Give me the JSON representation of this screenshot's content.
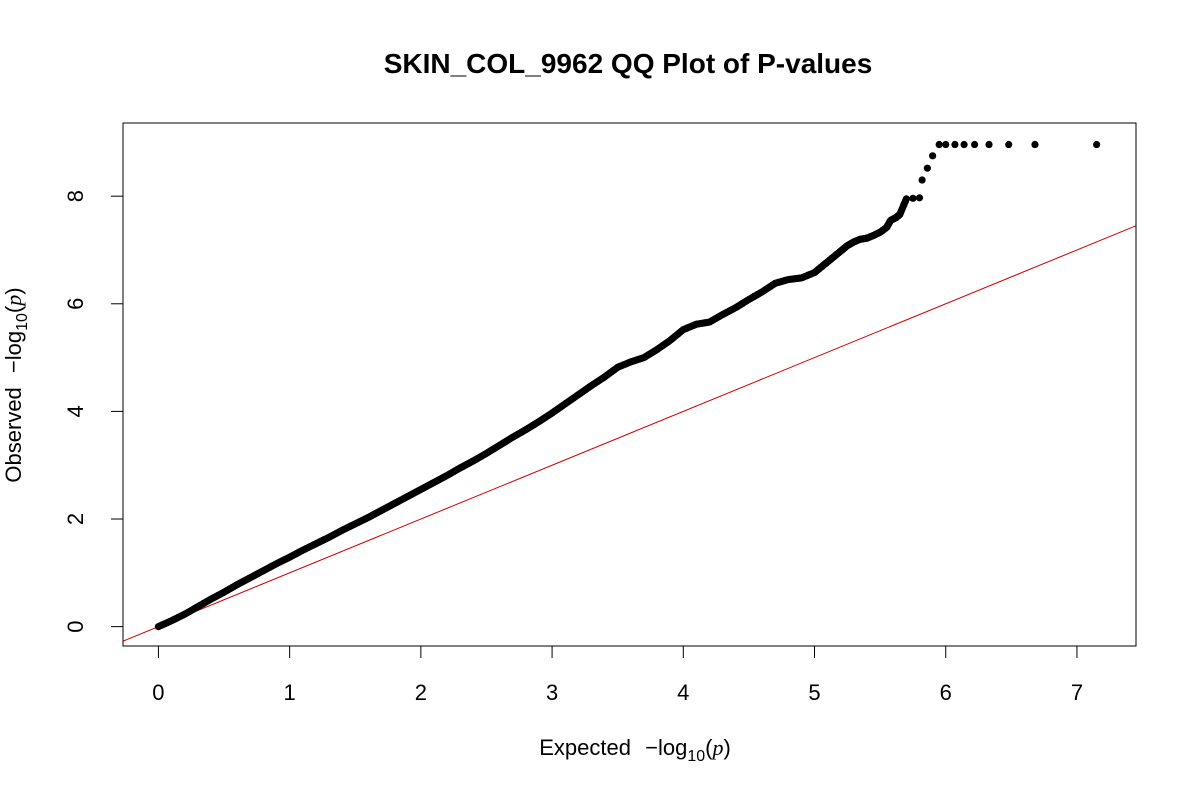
{
  "chart_data": {
    "type": "scatter",
    "title": "SKIN_COL_9962 QQ Plot of P-values",
    "xlabel": {
      "prefix": "Expected",
      "minus": "−",
      "log": "log",
      "base": "10",
      "open": "(",
      "var": "p",
      "close": ")"
    },
    "ylabel": {
      "prefix": "Observed",
      "minus": "−",
      "log": "log",
      "base": "10",
      "open": "(",
      "var": "p",
      "close": ")"
    },
    "xlim": [
      -0.27,
      7.45
    ],
    "ylim": [
      -0.36,
      9.36
    ],
    "x_ticks": [
      0,
      1,
      2,
      3,
      4,
      5,
      6,
      7
    ],
    "x_tick_labels": [
      "0",
      "1",
      "2",
      "3",
      "4",
      "5",
      "6",
      "7"
    ],
    "y_ticks": [
      0,
      2,
      4,
      6,
      8
    ],
    "y_tick_labels": [
      "0",
      "2",
      "4",
      "6",
      "8"
    ],
    "grid": false,
    "legend": "none",
    "colors": {
      "points": "#000000",
      "reference_line": "#cc0000"
    },
    "reference_line": {
      "intercept": 0,
      "slope": 1
    },
    "series": [
      {
        "points": [
          [
            0.0,
            0.0
          ],
          [
            0.1,
            0.11
          ],
          [
            0.2,
            0.23
          ],
          [
            0.3,
            0.37
          ],
          [
            0.4,
            0.51
          ],
          [
            0.5,
            0.64
          ],
          [
            0.6,
            0.78
          ],
          [
            0.7,
            0.91
          ],
          [
            0.8,
            1.04
          ],
          [
            0.9,
            1.17
          ],
          [
            1.0,
            1.29
          ],
          [
            1.1,
            1.42
          ],
          [
            1.2,
            1.54
          ],
          [
            1.3,
            1.66
          ],
          [
            1.4,
            1.79
          ],
          [
            1.5,
            1.91
          ],
          [
            1.6,
            2.03
          ],
          [
            1.7,
            2.16
          ],
          [
            1.8,
            2.29
          ],
          [
            1.9,
            2.42
          ],
          [
            2.0,
            2.55
          ],
          [
            2.1,
            2.68
          ],
          [
            2.2,
            2.81
          ],
          [
            2.3,
            2.95
          ],
          [
            2.4,
            3.08
          ],
          [
            2.5,
            3.22
          ],
          [
            2.6,
            3.37
          ],
          [
            2.7,
            3.52
          ],
          [
            2.8,
            3.66
          ],
          [
            2.9,
            3.81
          ],
          [
            3.0,
            3.97
          ],
          [
            3.1,
            4.14
          ],
          [
            3.2,
            4.31
          ],
          [
            3.3,
            4.48
          ],
          [
            3.4,
            4.64
          ],
          [
            3.5,
            4.82
          ],
          [
            3.6,
            4.92
          ],
          [
            3.7,
            5.0
          ],
          [
            3.8,
            5.15
          ],
          [
            3.9,
            5.32
          ],
          [
            4.0,
            5.52
          ],
          [
            4.1,
            5.62
          ],
          [
            4.2,
            5.66
          ],
          [
            4.3,
            5.8
          ],
          [
            4.4,
            5.93
          ],
          [
            4.5,
            6.08
          ],
          [
            4.6,
            6.22
          ],
          [
            4.7,
            6.38
          ],
          [
            4.8,
            6.45
          ],
          [
            4.9,
            6.48
          ],
          [
            5.0,
            6.58
          ],
          [
            5.05,
            6.68
          ],
          [
            5.1,
            6.78
          ],
          [
            5.15,
            6.88
          ],
          [
            5.2,
            6.98
          ],
          [
            5.25,
            7.08
          ],
          [
            5.3,
            7.15
          ],
          [
            5.35,
            7.2
          ],
          [
            5.4,
            7.22
          ],
          [
            5.45,
            7.27
          ],
          [
            5.5,
            7.33
          ],
          [
            5.55,
            7.42
          ],
          [
            5.58,
            7.55
          ],
          [
            5.62,
            7.6
          ],
          [
            5.65,
            7.66
          ],
          [
            5.7,
            7.95
          ],
          [
            5.75,
            7.96
          ],
          [
            5.8,
            7.97
          ],
          [
            5.82,
            8.3
          ],
          [
            5.86,
            8.52
          ],
          [
            5.9,
            8.75
          ],
          [
            5.95,
            8.96
          ],
          [
            6.0,
            8.96
          ],
          [
            6.07,
            8.96
          ],
          [
            6.14,
            8.96
          ],
          [
            6.22,
            8.96
          ],
          [
            6.33,
            8.96
          ],
          [
            6.48,
            8.96
          ],
          [
            6.68,
            8.96
          ],
          [
            7.15,
            8.96
          ]
        ]
      }
    ]
  }
}
